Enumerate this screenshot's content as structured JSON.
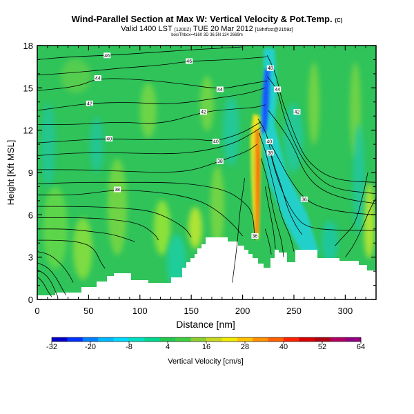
{
  "chart_data": {
    "type": "heatmap",
    "title": "Wind-Parallel Section at Max W: Vertical Velocity & Pot.Temp.",
    "title_mark": "(C)",
    "subtitle_pre": "Valid 1400 LST",
    "subtitle_utc": "(1200Z)",
    "subtitle_date": "TUE 20 Mar 2012",
    "subtitle_run": "[18hrfcst@2159z]",
    "subtitle2": "box/Thbox=4160 3D 36.5N 124 2669m",
    "xlabel": "Distance [nm]",
    "ylabel": "Height [Kft MSL]",
    "xlim": [
      0,
      330
    ],
    "ylim": [
      0,
      18
    ],
    "xticks": [
      0,
      50,
      100,
      150,
      200,
      250,
      300
    ],
    "yticks": [
      0,
      3,
      6,
      9,
      12,
      15,
      18
    ],
    "colorbar": {
      "label": "Vertical Velocity [cm/s]",
      "ticks": [
        -32,
        -20,
        -8,
        4,
        16,
        28,
        40,
        52,
        64
      ],
      "colors": [
        "#0000c8",
        "#0030ff",
        "#0080ff",
        "#00b8ff",
        "#00d8ff",
        "#00e0c0",
        "#00d890",
        "#20c850",
        "#40cc40",
        "#8ccc30",
        "#c8d820",
        "#f0e800",
        "#ffc000",
        "#ff9000",
        "#ff6000",
        "#ff2000",
        "#d80000",
        "#b00010",
        "#b00060",
        "#900080"
      ]
    },
    "contour_labels": [
      {
        "x": 68,
        "y": 17.3,
        "text": "46"
      },
      {
        "x": 148,
        "y": 16.9,
        "text": "46"
      },
      {
        "x": 59,
        "y": 15.7,
        "text": "44"
      },
      {
        "x": 178,
        "y": 14.9,
        "text": "44"
      },
      {
        "x": 51,
        "y": 13.9,
        "text": "42"
      },
      {
        "x": 162,
        "y": 13.3,
        "text": "42"
      },
      {
        "x": 70,
        "y": 11.4,
        "text": "40"
      },
      {
        "x": 174,
        "y": 11.2,
        "text": "40"
      },
      {
        "x": 178,
        "y": 9.8,
        "text": "38"
      },
      {
        "x": 78,
        "y": 7.8,
        "text": "38"
      },
      {
        "x": 227,
        "y": 16.4,
        "text": "48"
      },
      {
        "x": 234,
        "y": 14.9,
        "text": "44"
      },
      {
        "x": 253,
        "y": 13.3,
        "text": "42"
      },
      {
        "x": 226,
        "y": 11.2,
        "text": "40"
      },
      {
        "x": 227,
        "y": 10.4,
        "text": "38"
      },
      {
        "x": 260,
        "y": 7.1,
        "text": "36"
      },
      {
        "x": 212,
        "y": 4.5,
        "text": "36"
      }
    ],
    "contours": [
      [
        [
          0,
          1.6
        ],
        [
          6,
          1.2
        ],
        [
          10,
          0.6
        ],
        [
          14,
          0.2
        ]
      ],
      [
        [
          0,
          2.1
        ],
        [
          8,
          1.8
        ],
        [
          14,
          1.2
        ],
        [
          18,
          0.5
        ],
        [
          20,
          0.2
        ]
      ],
      [
        [
          0,
          2.6
        ],
        [
          10,
          2.3
        ],
        [
          18,
          1.6
        ],
        [
          24,
          0.8
        ],
        [
          28,
          0.3
        ]
      ],
      [
        [
          0,
          3.4
        ],
        [
          12,
          3.2
        ],
        [
          22,
          2.6
        ],
        [
          30,
          1.9
        ],
        [
          35,
          1.2
        ]
      ],
      [
        [
          0,
          4.2
        ],
        [
          20,
          4.2
        ],
        [
          40,
          4.1
        ],
        [
          55,
          3.7
        ],
        [
          62,
          2.6
        ],
        [
          66,
          2.2
        ]
      ],
      [
        [
          0,
          5.0
        ],
        [
          30,
          5.0
        ],
        [
          55,
          4.8
        ],
        [
          75,
          4.6
        ],
        [
          95,
          4.1
        ]
      ],
      [
        [
          0,
          5.8
        ],
        [
          40,
          5.8
        ],
        [
          70,
          5.7
        ],
        [
          100,
          5.4
        ],
        [
          115,
          4.6
        ],
        [
          118,
          4.2
        ]
      ],
      [
        [
          0,
          6.6
        ],
        [
          40,
          6.6
        ],
        [
          80,
          6.5
        ],
        [
          110,
          6.3
        ],
        [
          130,
          5.7
        ],
        [
          145,
          5.0
        ],
        [
          150,
          4.4
        ]
      ],
      [
        [
          0,
          7.4
        ],
        [
          40,
          7.4
        ],
        [
          78,
          7.8
        ],
        [
          120,
          7.6
        ],
        [
          150,
          7.2
        ],
        [
          170,
          6.6
        ],
        [
          190,
          5.4
        ],
        [
          200,
          4.5
        ]
      ],
      [
        [
          0,
          8.2
        ],
        [
          40,
          8.3
        ],
        [
          80,
          8.3
        ],
        [
          130,
          8.3
        ],
        [
          160,
          8.1
        ],
        [
          185,
          7.7
        ],
        [
          200,
          7.0
        ],
        [
          210,
          6.2
        ],
        [
          212,
          4.2
        ]
      ],
      [
        [
          0,
          9.2
        ],
        [
          40,
          9.2
        ],
        [
          80,
          9.1
        ],
        [
          120,
          9.0
        ],
        [
          150,
          9.1
        ],
        [
          178,
          9.8
        ],
        [
          205,
          10.5
        ],
        [
          214,
          11.0
        ]
      ],
      [
        [
          0,
          10.2
        ],
        [
          40,
          10.4
        ],
        [
          80,
          10.4
        ],
        [
          130,
          10.3
        ],
        [
          160,
          10.5
        ],
        [
          190,
          11.0
        ],
        [
          210,
          11.8
        ],
        [
          218,
          12.2
        ]
      ],
      [
        [
          0,
          11.1
        ],
        [
          40,
          11.3
        ],
        [
          70,
          11.4
        ],
        [
          110,
          11.3
        ],
        [
          150,
          11.4
        ],
        [
          174,
          11.2
        ],
        [
          200,
          11.8
        ],
        [
          218,
          12.6
        ]
      ],
      [
        [
          0,
          12.4
        ],
        [
          40,
          12.4
        ],
        [
          80,
          12.6
        ],
        [
          120,
          12.4
        ],
        [
          162,
          13.3
        ],
        [
          190,
          13.5
        ],
        [
          212,
          13.6
        ],
        [
          222,
          13.8
        ]
      ],
      [
        [
          0,
          13.4
        ],
        [
          30,
          13.7
        ],
        [
          51,
          13.9
        ],
        [
          90,
          14.0
        ],
        [
          130,
          13.8
        ],
        [
          178,
          14.3
        ],
        [
          205,
          14.6
        ],
        [
          222,
          15.0
        ]
      ],
      [
        [
          0,
          14.8
        ],
        [
          40,
          15.1
        ],
        [
          59,
          15.7
        ],
        [
          100,
          15.6
        ],
        [
          140,
          15.3
        ],
        [
          178,
          14.9
        ],
        [
          200,
          15.2
        ],
        [
          224,
          15.5
        ]
      ],
      [
        [
          0,
          15.9
        ],
        [
          40,
          16.1
        ],
        [
          80,
          16.4
        ],
        [
          120,
          16.6
        ],
        [
          148,
          16.9
        ],
        [
          190,
          17.0
        ],
        [
          224,
          17.2
        ]
      ],
      [
        [
          0,
          17.0
        ],
        [
          30,
          17.2
        ],
        [
          68,
          17.3
        ],
        [
          110,
          17.5
        ],
        [
          150,
          17.7
        ],
        [
          200,
          17.9
        ]
      ],
      [
        [
          224,
          17.3
        ],
        [
          232,
          16.1
        ],
        [
          238,
          14.2
        ],
        [
          244,
          13.0
        ],
        [
          252,
          11.4
        ],
        [
          262,
          9.9
        ],
        [
          280,
          8.8
        ],
        [
          300,
          8.4
        ],
        [
          330,
          8.3
        ]
      ],
      [
        [
          224,
          15.8
        ],
        [
          234,
          14.9
        ],
        [
          240,
          13.0
        ],
        [
          248,
          11.5
        ],
        [
          258,
          10.0
        ],
        [
          272,
          8.7
        ],
        [
          290,
          7.8
        ],
        [
          330,
          7.5
        ]
      ],
      [
        [
          225,
          13.4
        ],
        [
          238,
          12.2
        ],
        [
          250,
          10.8
        ],
        [
          260,
          9.0
        ],
        [
          275,
          7.8
        ],
        [
          300,
          7.1
        ],
        [
          330,
          6.8
        ]
      ],
      [
        [
          226,
          11.2
        ],
        [
          235,
          10.0
        ],
        [
          246,
          8.5
        ],
        [
          260,
          7.1
        ],
        [
          280,
          6.4
        ],
        [
          310,
          6.1
        ],
        [
          330,
          6.0
        ]
      ],
      [
        [
          227,
          10.4
        ],
        [
          232,
          9.0
        ],
        [
          240,
          7.4
        ],
        [
          250,
          6.0
        ],
        [
          262,
          5.1
        ],
        [
          290,
          4.9
        ],
        [
          330,
          4.9
        ]
      ],
      [
        [
          215,
          12.8
        ],
        [
          222,
          12.0
        ],
        [
          226,
          11.0
        ],
        [
          230,
          9.6
        ],
        [
          238,
          8.0
        ],
        [
          244,
          6.4
        ],
        [
          252,
          5.2
        ],
        [
          258,
          4.6
        ]
      ],
      [
        [
          216,
          11.8
        ],
        [
          222,
          10.6
        ],
        [
          226,
          9.4
        ],
        [
          232,
          7.6
        ],
        [
          238,
          5.8
        ],
        [
          246,
          4.6
        ],
        [
          250,
          3.4
        ]
      ],
      [
        [
          218,
          10.0
        ],
        [
          224,
          8.6
        ],
        [
          228,
          7.0
        ],
        [
          232,
          5.6
        ],
        [
          238,
          4.2
        ],
        [
          240,
          3.0
        ]
      ],
      [
        [
          222,
          8.0
        ],
        [
          226,
          6.4
        ],
        [
          230,
          5.0
        ],
        [
          232,
          3.6
        ]
      ],
      [
        [
          222,
          5.0
        ],
        [
          226,
          4.0
        ],
        [
          228,
          3.2
        ]
      ],
      [
        [
          290,
          3.8
        ],
        [
          300,
          4.6
        ],
        [
          310,
          5.4
        ],
        [
          318,
          7.6
        ],
        [
          322,
          9.0
        ]
      ],
      [
        [
          300,
          3.0
        ],
        [
          308,
          3.8
        ],
        [
          316,
          5.0
        ],
        [
          324,
          6.4
        ],
        [
          330,
          7.2
        ]
      ],
      [
        [
          190,
          1.2
        ],
        [
          195,
          4.0
        ],
        [
          197,
          6.0
        ],
        [
          200,
          7.5
        ],
        [
          202,
          8.6
        ]
      ]
    ]
  }
}
